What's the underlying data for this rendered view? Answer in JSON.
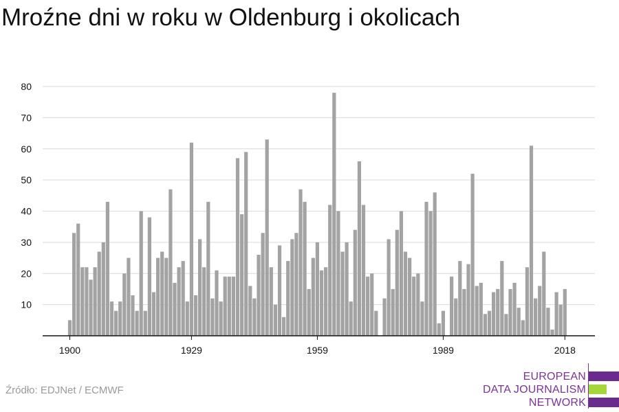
{
  "title": "Mroźne dni w roku w Oldenburg i okolicach",
  "source": "Źródło: EDJNet / ECMWF",
  "logo": {
    "lines": [
      "EUROPEAN",
      "DATA JOURNALISM",
      "NETWORK"
    ],
    "colors": [
      "#6a2a8e",
      "#a6d63a",
      "#6a2a8e"
    ]
  },
  "colors": {
    "bar": "#a3a3a3",
    "grid": "#d9d9d9",
    "axis": "#111111",
    "brand": "#7b3294"
  },
  "chart_data": {
    "type": "bar",
    "title": "Mroźne dni w roku w Oldenburg i okolicach",
    "xlabel": "",
    "ylabel": "",
    "ylim": [
      0,
      80
    ],
    "yticks": [
      10,
      20,
      30,
      40,
      50,
      60,
      70,
      80
    ],
    "xticks": [
      1900,
      1929,
      1959,
      1989,
      2018
    ],
    "grid": true,
    "x": [
      1900,
      1901,
      1902,
      1903,
      1904,
      1905,
      1906,
      1907,
      1908,
      1909,
      1910,
      1911,
      1912,
      1913,
      1914,
      1915,
      1916,
      1917,
      1918,
      1919,
      1920,
      1921,
      1922,
      1923,
      1924,
      1925,
      1926,
      1927,
      1928,
      1929,
      1930,
      1931,
      1932,
      1933,
      1934,
      1935,
      1936,
      1937,
      1938,
      1939,
      1940,
      1941,
      1942,
      1943,
      1944,
      1945,
      1946,
      1947,
      1948,
      1949,
      1950,
      1951,
      1952,
      1953,
      1954,
      1955,
      1956,
      1957,
      1958,
      1959,
      1960,
      1961,
      1962,
      1963,
      1964,
      1965,
      1966,
      1967,
      1968,
      1969,
      1970,
      1971,
      1972,
      1973,
      1974,
      1975,
      1976,
      1977,
      1978,
      1979,
      1980,
      1981,
      1982,
      1983,
      1984,
      1985,
      1986,
      1987,
      1988,
      1989,
      1990,
      1991,
      1992,
      1993,
      1994,
      1995,
      1996,
      1997,
      1998,
      1999,
      2000,
      2001,
      2002,
      2003,
      2004,
      2005,
      2006,
      2007,
      2008,
      2009,
      2010,
      2011,
      2012,
      2013,
      2014,
      2015,
      2016,
      2017,
      2018
    ],
    "values": [
      5,
      33,
      36,
      22,
      22,
      18,
      22,
      27,
      30,
      43,
      11,
      8,
      11,
      20,
      25,
      13,
      8,
      40,
      8,
      38,
      14,
      25,
      27,
      25,
      47,
      17,
      22,
      24,
      11,
      62,
      13,
      31,
      22,
      43,
      12,
      21,
      11,
      19,
      19,
      19,
      57,
      39,
      59,
      16,
      12,
      26,
      33,
      63,
      22,
      10,
      29,
      6,
      24,
      31,
      33,
      47,
      43,
      15,
      25,
      30,
      21,
      22,
      42,
      78,
      40,
      27,
      30,
      11,
      34,
      56,
      42,
      19,
      20,
      8,
      0,
      12,
      31,
      15,
      34,
      40,
      27,
      25,
      19,
      20,
      11,
      43,
      40,
      46,
      4,
      8,
      0,
      19,
      12,
      24,
      15,
      23,
      52,
      16,
      17,
      7,
      8,
      14,
      15,
      24,
      7,
      15,
      17,
      9,
      5,
      22,
      61,
      12,
      16,
      27,
      9,
      2,
      14,
      10,
      15
    ]
  }
}
